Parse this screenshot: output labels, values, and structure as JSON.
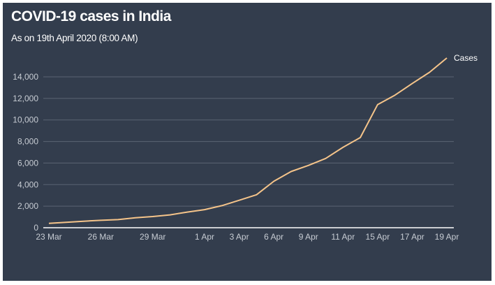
{
  "colors": {
    "background": "#333d4d",
    "line": "#f5c48a",
    "grid": "#5b6473",
    "axis": "#ffffff"
  },
  "chart_data": {
    "type": "line",
    "title": "COVID-19 cases in India",
    "subtitle": "As on 19th April 2020 (8:00 AM)",
    "xlabel": "",
    "ylabel": "",
    "ylim": [
      0,
      15750
    ],
    "grid": true,
    "legend": "none",
    "x": [
      "23 Mar",
      "24 Mar",
      "25 Mar",
      "26 Mar",
      "27 Mar",
      "28 Mar",
      "29 Mar",
      "30 Mar",
      "31 Mar",
      "1 Apr",
      "2 Apr",
      "3 Apr",
      "5 Apr",
      "6 Apr",
      "8 Apr",
      "9 Apr",
      "10 Apr",
      "11 Apr",
      "13 Apr",
      "15 Apr",
      "16 Apr",
      "17 Apr",
      "18 Apr",
      "19 Apr"
    ],
    "x_tick_labels": [
      "23 Mar",
      "26 Mar",
      "29 Mar",
      "1 Apr",
      "3 Apr",
      "6 Apr",
      "9 Apr",
      "11 Apr",
      "15 Apr",
      "17 Apr",
      "19 Apr"
    ],
    "y_ticks": [
      0,
      2000,
      4000,
      6000,
      8000,
      10000,
      12000,
      14000
    ],
    "y_tick_labels": [
      "0",
      "2,000",
      "4,000",
      "6,000",
      "8,000",
      "10,000",
      "12,000",
      "14,000"
    ],
    "series": [
      {
        "name": "Cases",
        "values": [
          400,
          500,
          600,
          690,
          750,
          930,
          1035,
          1190,
          1450,
          1680,
          2050,
          2550,
          3060,
          4310,
          5220,
          5780,
          6430,
          7460,
          8370,
          11430,
          12300,
          13380,
          14420,
          15750
        ]
      }
    ]
  }
}
